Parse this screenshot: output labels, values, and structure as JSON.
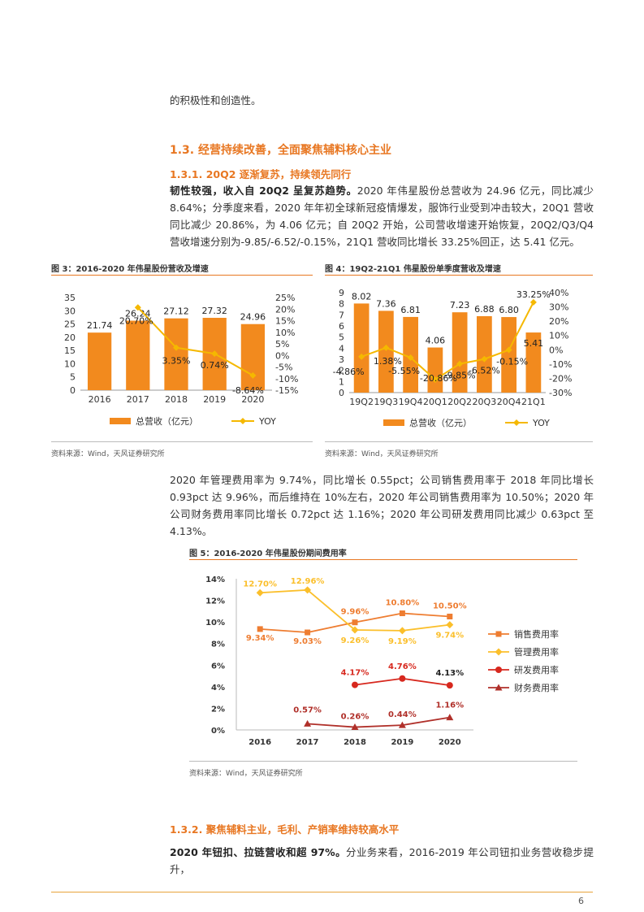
{
  "top_text": "的积极性和创造性。",
  "section": {
    "heading": "1.3. 经营持续改善，全面聚焦辅料核心主业"
  },
  "subsection1": {
    "heading": "1.3.1. 20Q2 逐渐复苏，持续领先同行"
  },
  "para1": {
    "bold": "韧性较强，收入自 20Q2 呈复苏趋势。",
    "text": "2020 年伟星股份总营收为 24.96 亿元，同比减少 8.64%；分季度来看，2020 年年初全球新冠疫情爆发，服饰行业受到冲击较大，20Q1 营收同比减少 20.86%，为 4.06 亿元；自 20Q2 开始，公司营收增速开始恢复，20Q2/Q3/Q4 营收增速分别为-9.85/-6.52/-0.15%，21Q1 营收同比增长 33.25%回正，达 5.41 亿元。"
  },
  "fig3": {
    "caption": "图 3：2016-2020 年伟星股份营收及增速",
    "source": "资料来源：Wind，天风证券研究所"
  },
  "fig4": {
    "caption": "图 4：19Q2-21Q1 伟星股份单季度营收及增速",
    "source": "资料来源：Wind，天风证券研究所"
  },
  "para2": {
    "text": "2020 年管理费用率为 9.74%，同比增长 0.55pct；公司销售费用率于 2018 年同比增长 0.93pct 达 9.96%，而后维持在 10%左右，2020 年公司销售费用率为 10.50%；2020 年公司财务费用率同比增长 0.72pct 达 1.16%；2020 年公司研发费用同比减少 0.63pct 至 4.13%。"
  },
  "fig5": {
    "caption": "图 5：2016-2020 年伟星股份期间费用率",
    "source": "资料来源：Wind，天风证券研究所"
  },
  "subsection2": {
    "heading": "1.3.2. 聚焦辅料主业，毛利、产销率维持较高水平"
  },
  "para3": {
    "bold": "2020 年钮扣、拉链营收和超 97%。",
    "text": "分业务来看，2016-2019 年公司钮扣业务营收稳步提升，"
  },
  "page_number": "6",
  "colors": {
    "accent": "#e87722",
    "bar": "#f28a1e",
    "yoy": "#f5b800",
    "sales": "#ee7d31",
    "mgmt": "#fbbf2b",
    "rd": "#d7281e",
    "fin": "#b0302a"
  },
  "chart_data": [
    {
      "type": "bar",
      "categories": [
        "2016",
        "2017",
        "2018",
        "2019",
        "2020"
      ],
      "series": [
        {
          "name": "总营收（亿元）",
          "values": [
            21.74,
            26.24,
            27.12,
            27.32,
            24.96
          ],
          "labels": [
            "21.74",
            "26.24",
            "27.12",
            "27.32",
            "24.96"
          ],
          "axis": "left",
          "kind": "bar"
        },
        {
          "name": "YOY",
          "values": [
            null,
            20.7,
            3.35,
            0.74,
            -8.64
          ],
          "labels": [
            "",
            "20.70%",
            "3.35%",
            "0.74%",
            "-8.64%"
          ],
          "axis": "right",
          "kind": "line"
        }
      ],
      "ylim": [
        0,
        35
      ],
      "yticks": [
        "0",
        "5",
        "10",
        "15",
        "20",
        "25",
        "30",
        "35"
      ],
      "y2lim": [
        -15,
        25
      ],
      "y2ticks": [
        "-15%",
        "-10%",
        "-5%",
        "0%",
        "5%",
        "10%",
        "15%",
        "20%",
        "25%"
      ],
      "legend": "bottom"
    },
    {
      "type": "bar",
      "categories": [
        "19Q2",
        "19Q3",
        "19Q4",
        "20Q1",
        "20Q2",
        "20Q3",
        "20Q4",
        "21Q1"
      ],
      "series": [
        {
          "name": "总营收（亿元）",
          "values": [
            8.02,
            7.36,
            6.81,
            4.06,
            7.23,
            6.88,
            6.8,
            5.41
          ],
          "labels": [
            "8.02",
            "7.36",
            "6.81",
            "4.06",
            "7.23",
            "6.88",
            "6.80",
            "5.41"
          ],
          "axis": "left",
          "kind": "bar"
        },
        {
          "name": "YOY",
          "values": [
            -4.86,
            1.38,
            -5.55,
            -20.86,
            -9.85,
            -6.52,
            -0.15,
            33.25
          ],
          "labels": [
            "-4.86%",
            "1.38%",
            "-5.55%",
            "-20.86%",
            "-9.85%",
            "-6.52%",
            "-0.15%",
            "33.25%"
          ],
          "axis": "right",
          "kind": "line"
        }
      ],
      "ylim": [
        0,
        9
      ],
      "yticks": [
        "0",
        "1",
        "2",
        "3",
        "4",
        "5",
        "6",
        "7",
        "8",
        "9"
      ],
      "y2lim": [
        -30,
        40
      ],
      "y2ticks": [
        "-30%",
        "-20%",
        "-10%",
        "0%",
        "10%",
        "20%",
        "30%",
        "40%"
      ],
      "legend": "bottom"
    },
    {
      "type": "line",
      "categories": [
        "2016",
        "2017",
        "2018",
        "2019",
        "2020"
      ],
      "series": [
        {
          "name": "销售费用率",
          "values": [
            9.34,
            9.03,
            9.96,
            10.8,
            10.5
          ],
          "labels": [
            "9.34%",
            "9.03%",
            "9.96%",
            "10.80%",
            "10.50%"
          ],
          "marker": "square"
        },
        {
          "name": "管理费用率",
          "values": [
            12.7,
            12.96,
            9.26,
            9.19,
            9.74
          ],
          "labels": [
            "12.70%",
            "12.96%",
            "9.26%",
            "9.19%",
            "9.74%"
          ],
          "marker": "diamond"
        },
        {
          "name": "研发费用率",
          "values": [
            null,
            null,
            4.17,
            4.76,
            4.13
          ],
          "labels": [
            "",
            "",
            "4.17%",
            "4.76%",
            "4.13%"
          ],
          "marker": "circle"
        },
        {
          "name": "财务费用率",
          "values": [
            null,
            0.57,
            0.26,
            0.44,
            1.16
          ],
          "labels": [
            "",
            "0.57%",
            "0.26%",
            "0.44%",
            "1.16%"
          ],
          "marker": "triangle"
        }
      ],
      "ylim": [
        0,
        14
      ],
      "yticks": [
        "0%",
        "2%",
        "4%",
        "6%",
        "8%",
        "10%",
        "12%",
        "14%"
      ],
      "legend": "right"
    }
  ]
}
